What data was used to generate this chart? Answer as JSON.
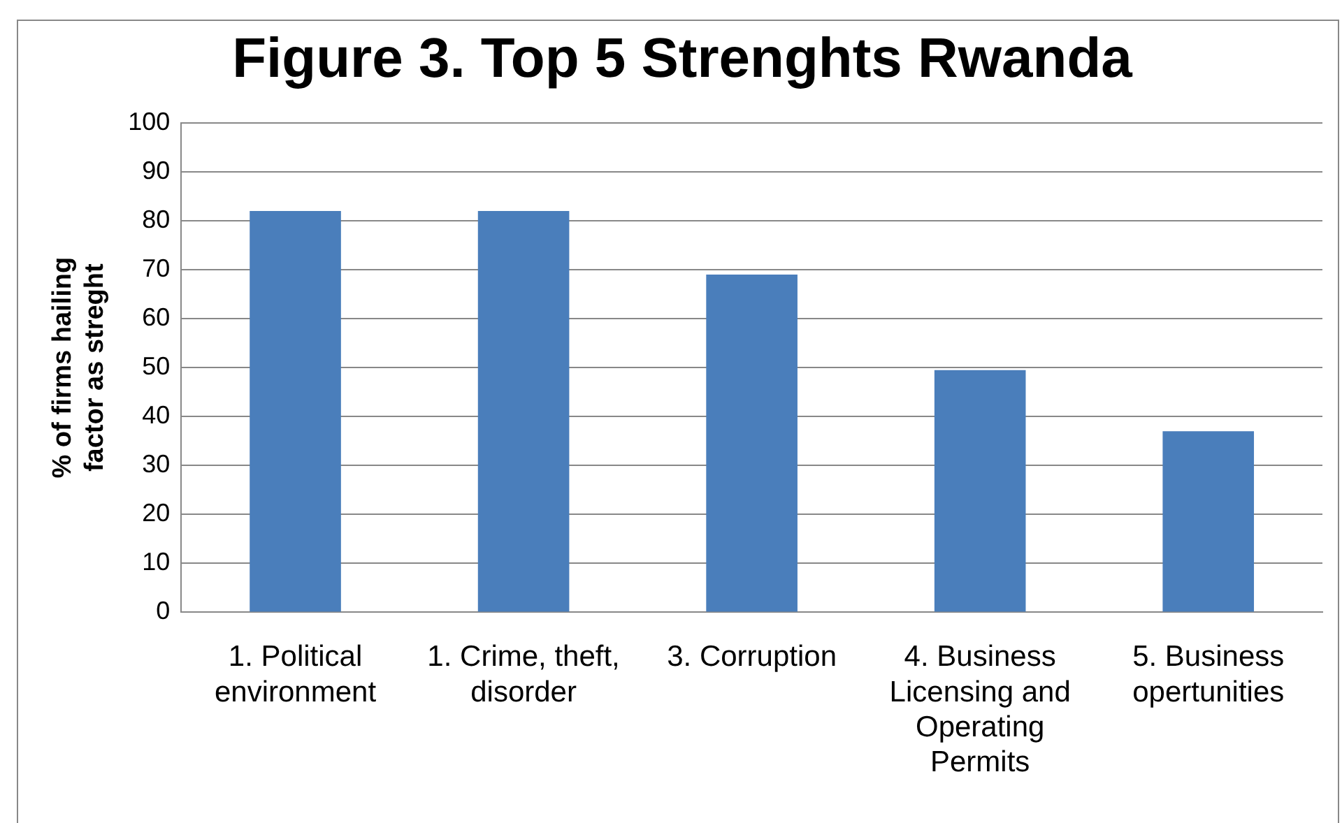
{
  "chart_data": {
    "type": "bar",
    "title": "Figure 3. Top 5 Strenghts Rwanda",
    "ylabel": "% of firms hailing factor as streght",
    "categories": [
      "1. Political environment",
      "1. Crime, theft, disorder",
      "3. Corruption",
      "4. Business Licensing and Operating Permits",
      "5. Business opertunities"
    ],
    "values": [
      82,
      82,
      69,
      49.5,
      37
    ],
    "color": "#4a7ebb",
    "ylim": [
      0,
      100
    ],
    "yticks": [
      0,
      10,
      20,
      30,
      40,
      50,
      60,
      70,
      80,
      90,
      100
    ],
    "grid": "y",
    "legend": false
  }
}
